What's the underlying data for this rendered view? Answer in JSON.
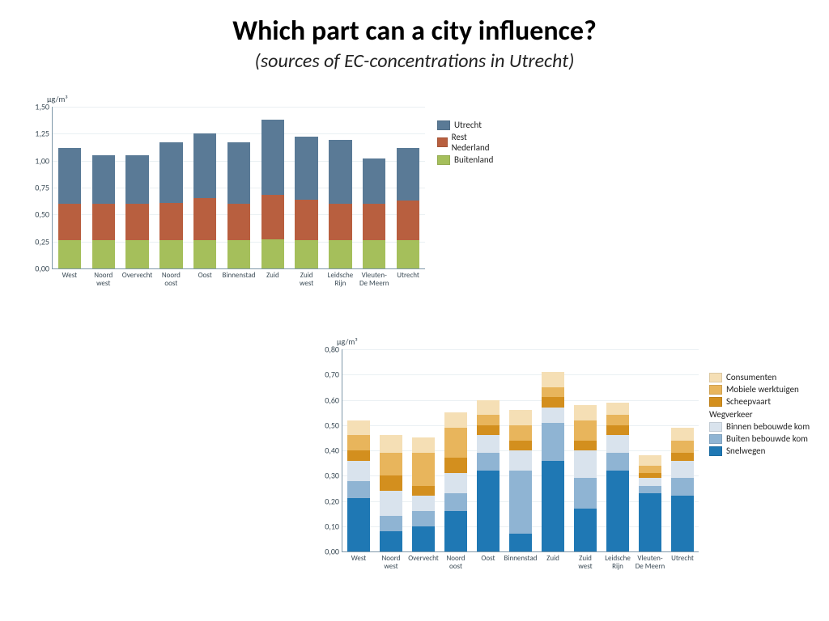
{
  "title": "Which part can a city influence?",
  "subtitle": "(sources of EC-concentrations in Utrecht)",
  "chart1": {
    "type": "stacked-bar",
    "yunit": "µg/m³",
    "ylim": [
      0,
      1.5
    ],
    "ytick_step": 0.25,
    "yticks": [
      "0,00",
      "0,25",
      "0,50",
      "0,75",
      "1,00",
      "1,25",
      "1,50"
    ],
    "categories": [
      "West",
      "Noord west",
      "Overvecht",
      "Noord oost",
      "Oost",
      "Binnenstad",
      "Zuid",
      "Zuid west",
      "Leidsche Rijn",
      "Vleuten- De Meern",
      "Utrecht"
    ],
    "series": [
      {
        "name": "Buitenland",
        "color": "#A5BF5B"
      },
      {
        "name": "Rest Nederland",
        "color": "#B85F3F"
      },
      {
        "name": "Utrecht",
        "color": "#5A7A96"
      }
    ],
    "data": [
      [
        0.26,
        0.34,
        0.52
      ],
      [
        0.26,
        0.34,
        0.45
      ],
      [
        0.26,
        0.34,
        0.45
      ],
      [
        0.26,
        0.35,
        0.56
      ],
      [
        0.26,
        0.39,
        0.6
      ],
      [
        0.26,
        0.34,
        0.57
      ],
      [
        0.27,
        0.41,
        0.7
      ],
      [
        0.26,
        0.38,
        0.58
      ],
      [
        0.26,
        0.34,
        0.59
      ],
      [
        0.26,
        0.34,
        0.42
      ],
      [
        0.26,
        0.37,
        0.49
      ]
    ],
    "legend_order": [
      "Utrecht",
      "Rest Nederland",
      "Buitenland"
    ],
    "background_color": "#ffffff",
    "grid_color": "#EAF0F3",
    "axis_color": "#7F98A9",
    "bar_width_ratio": 0.68,
    "label_fontsize": 9
  },
  "chart2": {
    "type": "stacked-bar",
    "yunit": "µg/m³",
    "ylim": [
      0,
      0.8
    ],
    "ytick_step": 0.1,
    "yticks": [
      "0,00",
      "0,10",
      "0,20",
      "0,30",
      "0,40",
      "0,50",
      "0,60",
      "0,70",
      "0,80"
    ],
    "categories": [
      "West",
      "Noord west",
      "Overvecht",
      "Noord oost",
      "Oost",
      "Binnenstad",
      "Zuid",
      "Zuid west",
      "Leidsche Rijn",
      "Vleuten- De Meern",
      "Utrecht"
    ],
    "series": [
      {
        "name": "Snelwegen",
        "color": "#1F78B4"
      },
      {
        "name": "Buiten bebouwde kom",
        "color": "#8FB4D3"
      },
      {
        "name": "Binnen bebouwde kom",
        "color": "#D9E3ED"
      },
      {
        "name": "Scheepvaart",
        "color": "#D38F1E"
      },
      {
        "name": "Mobiele werktuigen",
        "color": "#E8B55C"
      },
      {
        "name": "Consumenten",
        "color": "#F5DFB5"
      }
    ],
    "data": [
      [
        0.21,
        0.07,
        0.08,
        0.04,
        0.06,
        0.06
      ],
      [
        0.08,
        0.06,
        0.1,
        0.06,
        0.09,
        0.07
      ],
      [
        0.1,
        0.06,
        0.06,
        0.04,
        0.13,
        0.06
      ],
      [
        0.16,
        0.07,
        0.08,
        0.06,
        0.12,
        0.06
      ],
      [
        0.32,
        0.07,
        0.07,
        0.04,
        0.04,
        0.06
      ],
      [
        0.07,
        0.25,
        0.08,
        0.04,
        0.06,
        0.06
      ],
      [
        0.36,
        0.15,
        0.06,
        0.04,
        0.04,
        0.06
      ],
      [
        0.17,
        0.12,
        0.11,
        0.04,
        0.08,
        0.06
      ],
      [
        0.32,
        0.07,
        0.07,
        0.04,
        0.04,
        0.05
      ],
      [
        0.23,
        0.03,
        0.03,
        0.02,
        0.03,
        0.04
      ],
      [
        0.22,
        0.07,
        0.07,
        0.03,
        0.05,
        0.05
      ]
    ],
    "legend_top": [
      "Consumenten",
      "Mobiele werktuigen",
      "Scheepvaart"
    ],
    "legend_header": "Wegverkeer",
    "legend_bottom": [
      "Binnen bebouwde kom",
      "Buiten bebouwde kom",
      "Snelwegen"
    ],
    "background_color": "#ffffff",
    "grid_color": "#EAF0F3",
    "axis_color": "#7F98A9",
    "bar_width_ratio": 0.68,
    "label_fontsize": 9
  }
}
